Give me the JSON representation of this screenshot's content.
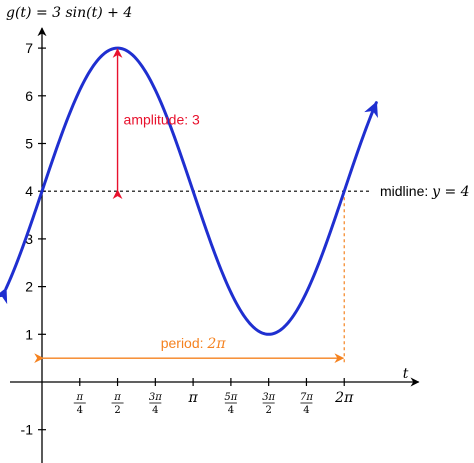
{
  "chart_data": {
    "type": "line",
    "title": "g(t) = 3 sin(t) + 4",
    "xlabel": "t",
    "ylabel": "",
    "xlim": [
      -1.1,
      7.0
    ],
    "ylim": [
      -1.5,
      7.5
    ],
    "grid": false,
    "y_ticks": [
      {
        "value": -1,
        "label": "-1"
      },
      {
        "value": 1,
        "label": "1"
      },
      {
        "value": 2,
        "label": "2"
      },
      {
        "value": 3,
        "label": "3"
      },
      {
        "value": 4,
        "label": "4"
      },
      {
        "value": 5,
        "label": "5"
      },
      {
        "value": 6,
        "label": "6"
      },
      {
        "value": 7,
        "label": "7"
      }
    ],
    "x_ticks": [
      {
        "value": 0.7854,
        "num": "π",
        "den": "4"
      },
      {
        "value": 1.5708,
        "num": "π",
        "den": "2"
      },
      {
        "value": 2.3562,
        "num": "3π",
        "den": "4"
      },
      {
        "value": 3.1416,
        "label": "π"
      },
      {
        "value": 3.927,
        "num": "5π",
        "den": "4"
      },
      {
        "value": 4.7124,
        "num": "3π",
        "den": "2"
      },
      {
        "value": 5.4978,
        "num": "7π",
        "den": "4"
      },
      {
        "value": 6.2832,
        "label": "2π"
      }
    ],
    "series": [
      {
        "function": "3*sin(t)+4",
        "t_range": [
          -0.75,
          6.95
        ],
        "color": "#1f2fd0"
      }
    ],
    "annotations": {
      "amplitude": {
        "label": "amplitude: 3",
        "t": 1.5708,
        "from": 4,
        "to": 7,
        "color": "#e8112d"
      },
      "midline": {
        "label_prefix": "midline: ",
        "label_math": "y = 4",
        "y": 4
      },
      "period": {
        "label_prefix": "period: ",
        "label_math": "2π",
        "from": 0,
        "to": 6.2832,
        "y": 0.5,
        "color": "#f5821f"
      }
    }
  }
}
